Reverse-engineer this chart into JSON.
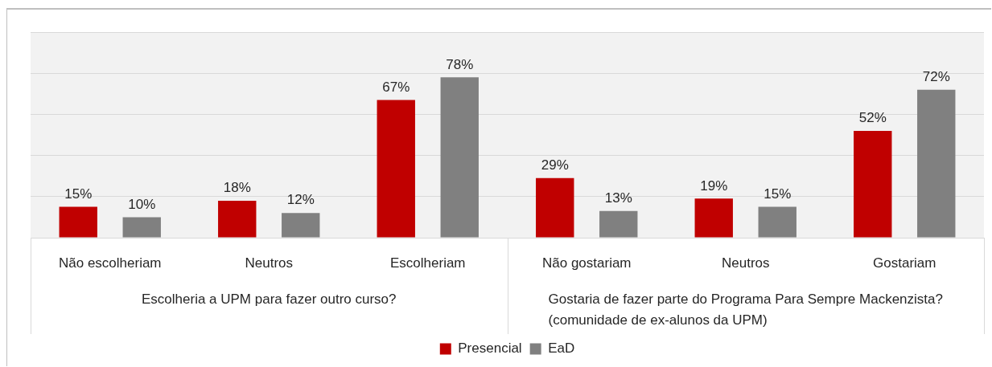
{
  "chart_data": {
    "type": "bar",
    "categories": [
      "Não escolheriam",
      "Neutros",
      "Escolheriam",
      "Não gostariam",
      "Neutros",
      "Gostariam"
    ],
    "series": [
      {
        "name": "Presencial",
        "color": "#c00000",
        "values": [
          15,
          18,
          67,
          29,
          19,
          52
        ],
        "value_labels": [
          "15%",
          "18%",
          "67%",
          "29%",
          "19%",
          "52%"
        ]
      },
      {
        "name": "EaD",
        "color": "#808080",
        "values": [
          10,
          12,
          78,
          13,
          15,
          72
        ],
        "value_labels": [
          "10%",
          "12%",
          "78%",
          "13%",
          "15%",
          "72%"
        ]
      }
    ],
    "annotations": [
      "Escolheria a UPM para fazer outro curso?",
      "Gostaria de fazer parte do Programa Para Sempre Mackenzista? (comunidade de ex-alunos da UPM)"
    ],
    "ylim": [
      0,
      100
    ],
    "yticks": [
      {
        "value": 0,
        "label": null
      },
      {
        "value": 20,
        "label": null
      },
      {
        "value": 40,
        "label": null
      },
      {
        "value": 60,
        "label": null
      },
      {
        "value": 80,
        "label": null
      },
      {
        "value": 100,
        "label": null
      }
    ],
    "grid": "y",
    "legend": "bottom",
    "tick_labels": "x"
  }
}
